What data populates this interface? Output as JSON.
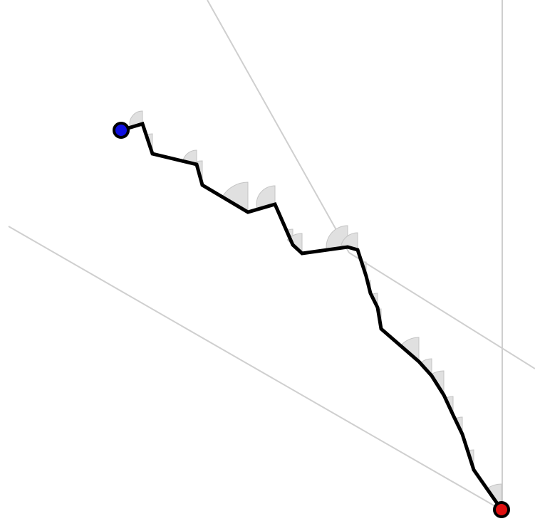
{
  "diagram": {
    "colors": {
      "background": "#ffffff",
      "guide_line": "#cfcfcf",
      "sector_fill": "#e0e0e0",
      "sector_stroke": "#c4c4c4",
      "path": "#000000",
      "start_marker": "#1010e0",
      "end_marker": "#e01010",
      "marker_outline": "#000000"
    },
    "start_marker": {
      "label": "",
      "color_name": "blue"
    },
    "end_marker": {
      "label": "",
      "color_name": "red"
    }
  }
}
